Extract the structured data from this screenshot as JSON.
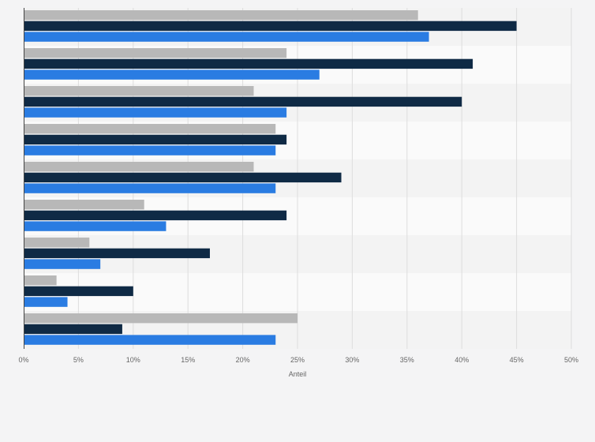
{
  "chart_data": {
    "type": "bar",
    "orientation": "horizontal",
    "xlabel": "Anteil",
    "xlim": [
      0,
      50
    ],
    "x_ticks": [
      "0%",
      "5%",
      "10%",
      "15%",
      "20%",
      "25%",
      "30%",
      "35%",
      "40%",
      "45%",
      "50%"
    ],
    "x_tick_values": [
      0,
      5,
      10,
      15,
      20,
      25,
      30,
      35,
      40,
      45,
      50
    ],
    "grid": true,
    "category_count": 9,
    "series": [
      {
        "color": "#b8b8b8",
        "values": [
          36,
          24,
          21,
          23,
          21,
          11,
          6,
          3,
          25
        ]
      },
      {
        "color": "#0f2a45",
        "values": [
          45,
          41,
          40,
          24,
          29,
          24,
          17,
          10,
          9
        ]
      },
      {
        "color": "#2a7ce2",
        "values": [
          37,
          27,
          24,
          23,
          23,
          13,
          7,
          4,
          23
        ]
      }
    ]
  },
  "colors": {
    "band_even": "#f3f3f3",
    "band_odd": "#fafafa",
    "grid": "#dddddd",
    "axis": "#444444"
  }
}
